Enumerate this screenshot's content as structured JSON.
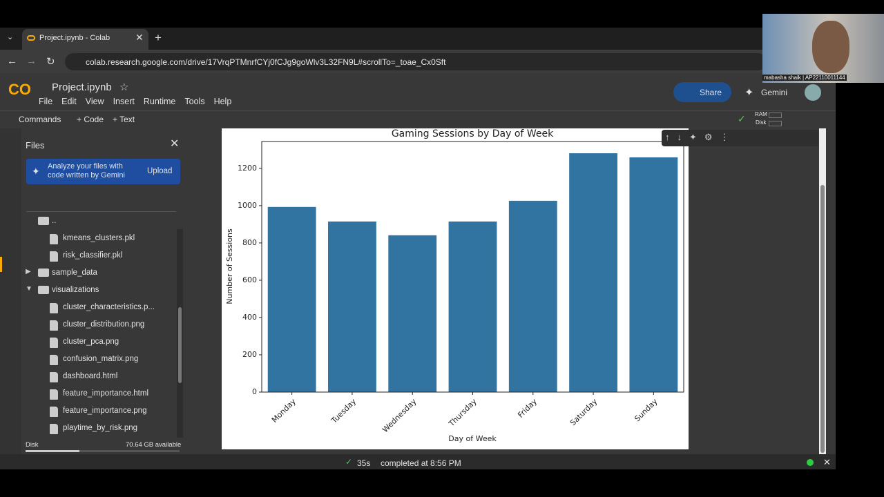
{
  "tab": {
    "title": "Project.ipynb - Colab"
  },
  "url": "colab.research.google.com/drive/17VrqPTMnrfCYj0fCJg9goWlv3L32FN9L#scrollTo=_toae_Cx0Sft",
  "notebook": {
    "name": "Project.ipynb",
    "menu": [
      "File",
      "Edit",
      "View",
      "Insert",
      "Runtime",
      "Tools",
      "Help"
    ],
    "share": "Share",
    "gemini": "Gemini"
  },
  "toolbar": {
    "commands": "Commands",
    "code": "+ Code",
    "text": "+ Text",
    "ram": "RAM",
    "disk": "Disk"
  },
  "sidebar": {
    "title": "Files",
    "banner": "Analyze your files with code written by Gemini",
    "upload": "Upload",
    "files": [
      {
        "name": "..",
        "kind": "folder"
      },
      {
        "name": "kmeans_clusters.pkl",
        "kind": "file"
      },
      {
        "name": "risk_classifier.pkl",
        "kind": "file"
      },
      {
        "name": "sample_data",
        "kind": "folder",
        "expanded": false
      },
      {
        "name": "visualizations",
        "kind": "folder",
        "expanded": true
      },
      {
        "name": "cluster_characteristics.p...",
        "kind": "file"
      },
      {
        "name": "cluster_distribution.png",
        "kind": "file"
      },
      {
        "name": "cluster_pca.png",
        "kind": "file"
      },
      {
        "name": "confusion_matrix.png",
        "kind": "file"
      },
      {
        "name": "dashboard.html",
        "kind": "file"
      },
      {
        "name": "feature_importance.html",
        "kind": "file"
      },
      {
        "name": "feature_importance.png",
        "kind": "file"
      },
      {
        "name": "playtime_by_risk.png",
        "kind": "file"
      }
    ],
    "disk": "Disk",
    "disk_available": "70.64 GB available"
  },
  "status": {
    "time": "35s",
    "message": "completed at 8:56 PM"
  },
  "webcam": {
    "name": "mabasha shaik | AP22110011144"
  },
  "chart_data": {
    "type": "bar",
    "title": "Gaming Sessions by Day of Week",
    "x_label": "Day of Week",
    "y_label": "Number of Sessions",
    "categories": [
      "Monday",
      "Tuesday",
      "Wednesday",
      "Thursday",
      "Friday",
      "Saturday",
      "Sunday"
    ],
    "values": [
      993,
      915,
      841,
      915,
      1026,
      1281,
      1259
    ],
    "color": "#3274a1",
    "ylim": [
      0,
      1344
    ],
    "yticks": [
      0,
      200,
      400,
      600,
      800,
      1000,
      1200
    ],
    "grid": false
  }
}
